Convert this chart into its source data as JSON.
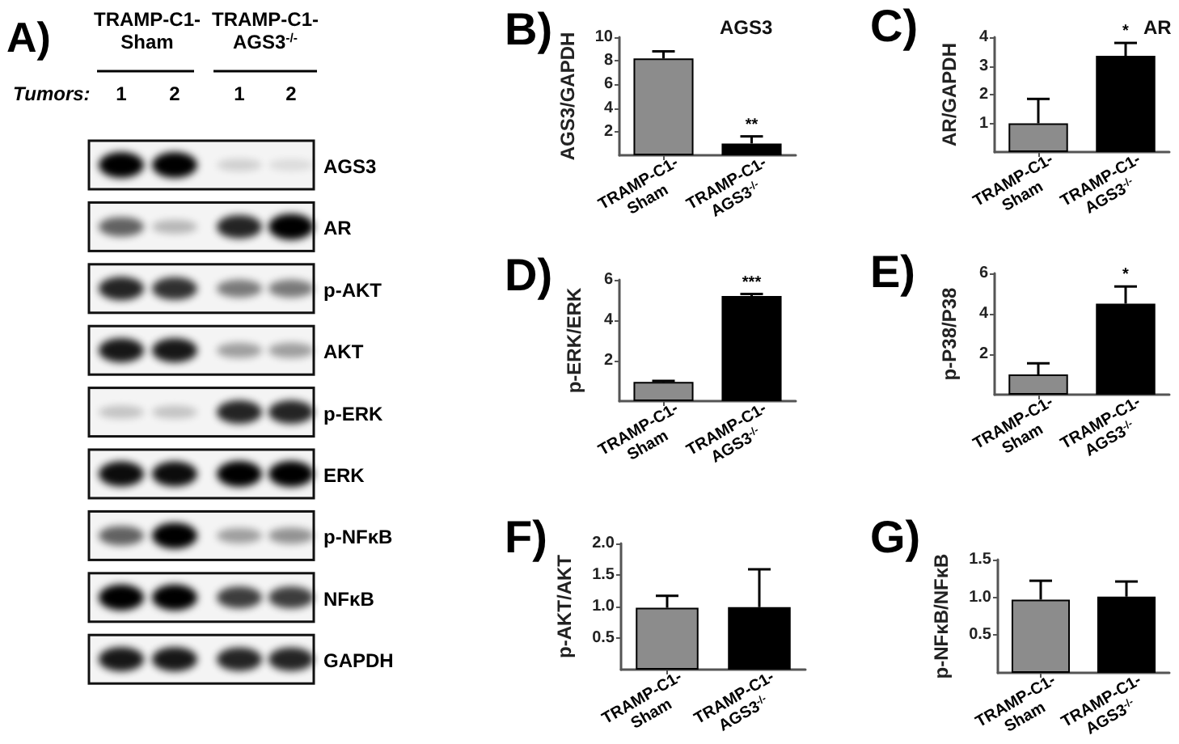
{
  "chart_data": [
    {
      "type": "other",
      "annotations": [
        "A)",
        "TRAMP-C1-\nSham",
        "TRAMP-C1-\nAGS3$^{-/-}$",
        "Tumors:",
        "1",
        "2",
        "1",
        "2",
        "AGS3",
        "AR",
        "p-AKT",
        "AKT",
        "p-ERK",
        "ERK",
        "p-NFκB",
        "NFκB",
        "GAPDH"
      ]
    },
    {
      "type": "bar",
      "title": "AGS3",
      "ylabel": "AGS3/GAPDH",
      "categories": [
        "TRAMP-C1-\nSham",
        "TRAMP-C1-\nAGS3$^{-/-}$"
      ],
      "values": [
        8.2,
        1.0
      ],
      "colors": [
        "#8c8c8c",
        "#000000"
      ],
      "errors": [
        [
          8.2,
          8.8
        ],
        [
          1.0,
          1.6
        ]
      ],
      "ylim": [
        0,
        10
      ],
      "yticks": [
        2,
        4,
        6,
        8,
        10
      ],
      "annotations": [
        "B)",
        {
          "text": "**",
          "x": "TRAMP-C1-\nAGS3$^{-/-}$",
          "y": 1.6
        }
      ]
    },
    {
      "type": "bar",
      "title": "AR",
      "ylabel": "AR/GAPDH",
      "categories": [
        "TRAMP-C1-\nSham",
        "TRAMP-C1-\nAGS3$^{-/-}$"
      ],
      "values": [
        1.0,
        3.35
      ],
      "colors": [
        "#8c8c8c",
        "#000000"
      ],
      "errors": [
        [
          1.0,
          1.85
        ],
        [
          3.35,
          3.8
        ]
      ],
      "ylim": [
        0,
        4
      ],
      "yticks": [
        1,
        2,
        3,
        4
      ],
      "annotations": [
        "C)",
        {
          "text": "*",
          "x": "TRAMP-C1-\nAGS3$^{-/-}$",
          "y": 3.8
        }
      ]
    },
    {
      "type": "bar",
      "ylabel": "p-ERK/ERK",
      "categories": [
        "TRAMP-C1-\nSham",
        "TRAMP-C1-\nAGS3$^{-/-}$"
      ],
      "values": [
        0.95,
        5.2
      ],
      "colors": [
        "#8c8c8c",
        "#000000"
      ],
      "errors": [
        [
          0.95,
          1.0
        ],
        [
          5.2,
          5.3
        ]
      ],
      "ylim": [
        0,
        6
      ],
      "yticks": [
        2,
        4,
        6
      ],
      "annotations": [
        "D)",
        {
          "text": "***",
          "x": "TRAMP-C1-\nAGS3$^{-/-}$",
          "y": 5.3
        }
      ]
    },
    {
      "type": "bar",
      "ylabel": "p-P38/P38",
      "categories": [
        "TRAMP-C1-\nSham",
        "TRAMP-C1-\nAGS3$^{-/-}$"
      ],
      "values": [
        1.0,
        4.5
      ],
      "colors": [
        "#8c8c8c",
        "#000000"
      ],
      "errors": [
        [
          1.0,
          1.55
        ],
        [
          4.5,
          5.35
        ]
      ],
      "ylim": [
        0,
        6
      ],
      "yticks": [
        2,
        4,
        6
      ],
      "annotations": [
        "E)",
        {
          "text": "*",
          "x": "TRAMP-C1-\nAGS3$^{-/-}$",
          "y": 5.35
        }
      ]
    },
    {
      "type": "bar",
      "ylabel": "p-AKT/AKT",
      "categories": [
        "TRAMP-C1-\nSham",
        "TRAMP-C1-\nAGS3$^{-/-}$"
      ],
      "values": [
        0.98,
        0.99
      ],
      "colors": [
        "#8c8c8c",
        "#000000"
      ],
      "errors": [
        [
          0.98,
          1.17
        ],
        [
          0.99,
          1.59
        ]
      ],
      "ylim": [
        0,
        2.0
      ],
      "yticks": [
        {
          "value": 0.5,
          "label": "0.5"
        },
        {
          "value": 1.0,
          "label": "1.0"
        },
        {
          "value": 1.5,
          "label": "1.5"
        },
        {
          "value": 2.0,
          "label": "2.0"
        }
      ],
      "annotations": [
        "F)"
      ]
    },
    {
      "type": "bar",
      "ylabel": "p-NFκB/NFκB",
      "categories": [
        "TRAMP-C1-\nSham",
        "TRAMP-C1-\nAGS3$^{-/-}$"
      ],
      "values": [
        0.97,
        1.01
      ],
      "colors": [
        "#8c8c8c",
        "#000000"
      ],
      "errors": [
        [
          0.97,
          1.22
        ],
        [
          1.01,
          1.21
        ]
      ],
      "ylim": [
        0,
        1.5
      ],
      "yticks": [
        {
          "value": 0.5,
          "label": "0.5"
        },
        {
          "value": 1.0,
          "label": "1.0"
        },
        {
          "value": 1.5,
          "label": "1.5"
        }
      ],
      "annotations": [
        "G)"
      ]
    }
  ]
}
